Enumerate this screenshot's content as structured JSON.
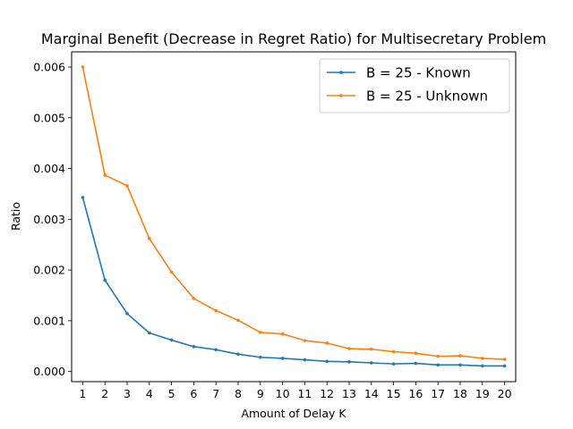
{
  "chart_data": {
    "type": "line",
    "title": "Marginal Benefit (Decrease in Regret Ratio) for Multisecretary Problem",
    "xlabel": "Amount of Delay K",
    "ylabel": "Ratio",
    "x": [
      1,
      2,
      3,
      4,
      5,
      6,
      7,
      8,
      9,
      10,
      11,
      12,
      13,
      14,
      15,
      16,
      17,
      18,
      19,
      20
    ],
    "xlim": [
      0.5,
      20.5
    ],
    "ylim": [
      -0.0002,
      0.0063
    ],
    "yticks": [
      0.0,
      0.001,
      0.002,
      0.003,
      0.004,
      0.005,
      0.006
    ],
    "ytick_labels": [
      "0.000",
      "0.001",
      "0.002",
      "0.003",
      "0.004",
      "0.005",
      "0.006"
    ],
    "legend_position": "top-right",
    "grid": false,
    "series": [
      {
        "name": "B = 25 - Known",
        "color": "#1f77b4",
        "values": [
          0.00343,
          0.0018,
          0.00114,
          0.00076,
          0.00062,
          0.00049,
          0.00043,
          0.00034,
          0.00028,
          0.00026,
          0.00023,
          0.0002,
          0.00019,
          0.00017,
          0.00015,
          0.00016,
          0.00013,
          0.00013,
          0.00011,
          0.00011
        ]
      },
      {
        "name": "B = 25 - Unknown",
        "color": "#ff7f0e",
        "values": [
          0.006,
          0.00387,
          0.00366,
          0.00262,
          0.00196,
          0.00144,
          0.0012,
          0.00101,
          0.00077,
          0.00074,
          0.00061,
          0.00056,
          0.00045,
          0.00044,
          0.00039,
          0.00036,
          0.0003,
          0.00031,
          0.00026,
          0.00024
        ]
      }
    ]
  }
}
